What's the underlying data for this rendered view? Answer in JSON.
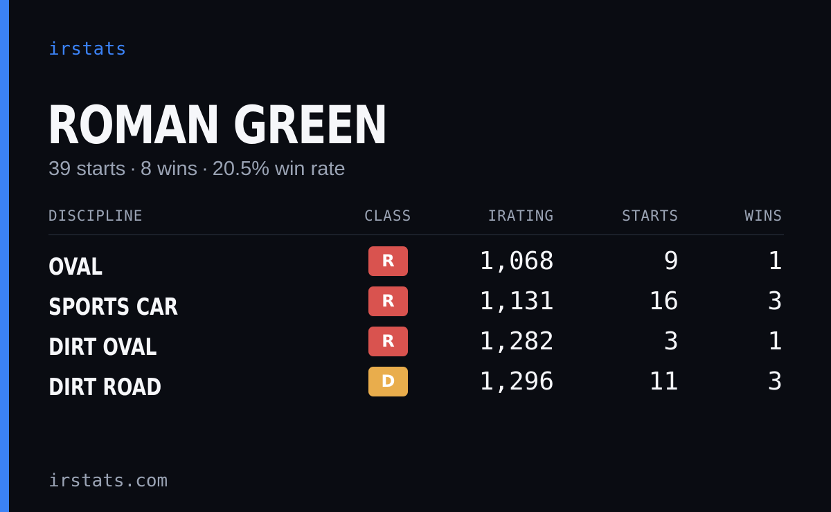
{
  "brand": "irstats",
  "driver": {
    "name": "ROMAN GREEN",
    "starts_text": "39 starts",
    "wins_text": "8 wins",
    "win_rate_text": "20.5% win rate",
    "separator": "·"
  },
  "colors": {
    "accent": "#3b82f6",
    "background": "#0a0c12",
    "class_R": "#d9534f",
    "class_D": "#e9ad4c"
  },
  "table": {
    "headers": {
      "discipline": "DISCIPLINE",
      "class": "CLASS",
      "irating": "IRATING",
      "starts": "STARTS",
      "wins": "WINS"
    },
    "rows": [
      {
        "discipline": "OVAL",
        "class": "R",
        "class_color": "#d9534f",
        "irating": "1,068",
        "starts": "9",
        "wins": "1"
      },
      {
        "discipline": "SPORTS CAR",
        "class": "R",
        "class_color": "#d9534f",
        "irating": "1,131",
        "starts": "16",
        "wins": "3"
      },
      {
        "discipline": "DIRT OVAL",
        "class": "R",
        "class_color": "#d9534f",
        "irating": "1,282",
        "starts": "3",
        "wins": "1"
      },
      {
        "discipline": "DIRT ROAD",
        "class": "D",
        "class_color": "#e9ad4c",
        "irating": "1,296",
        "starts": "11",
        "wins": "3"
      }
    ]
  },
  "footer": "irstats.com"
}
